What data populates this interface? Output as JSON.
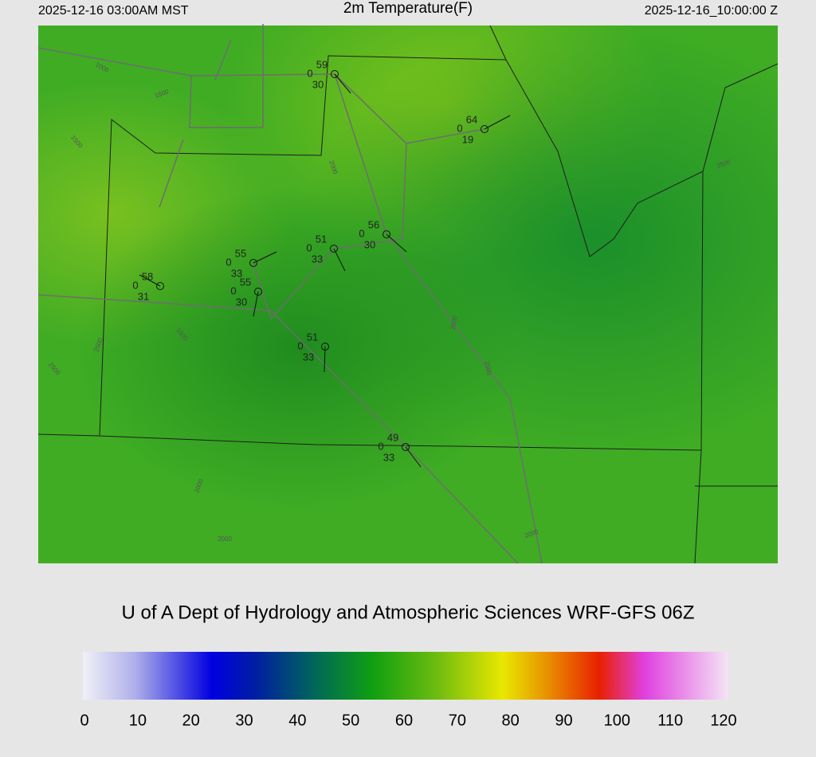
{
  "header": {
    "local_time": "2025-12-16 03:00AM MST",
    "title": "2m Temperature(F)",
    "valid_time": "2025-12-16_10:00:00 Z"
  },
  "stations": [
    {
      "temperature": 59,
      "code": 0,
      "dewpoint": 30
    },
    {
      "temperature": 64,
      "code": 0,
      "dewpoint": 19
    },
    {
      "temperature": 56,
      "code": 0,
      "dewpoint": 30
    },
    {
      "temperature": 51,
      "code": 0,
      "dewpoint": 33
    },
    {
      "temperature": 55,
      "code": 0,
      "dewpoint": 33
    },
    {
      "temperature": 55,
      "code": 0,
      "dewpoint": 30
    },
    {
      "temperature": 58,
      "code": 0,
      "dewpoint": 31
    },
    {
      "temperature": 51,
      "code": 0,
      "dewpoint": 33
    },
    {
      "temperature": 49,
      "code": 0,
      "dewpoint": 33
    }
  ],
  "contour_labels": [
    "1000",
    "1500",
    "1500",
    "2500",
    "2500",
    "1500",
    "2000",
    "2000",
    "2000",
    "2000",
    "2000",
    "2500",
    "2000"
  ],
  "footer": "U of A Dept of Hydrology and Atmospheric Sciences WRF-GFS 06Z",
  "colorbar": {
    "ticks": [
      0,
      10,
      20,
      30,
      40,
      50,
      60,
      70,
      80,
      90,
      100,
      110,
      120
    ]
  }
}
